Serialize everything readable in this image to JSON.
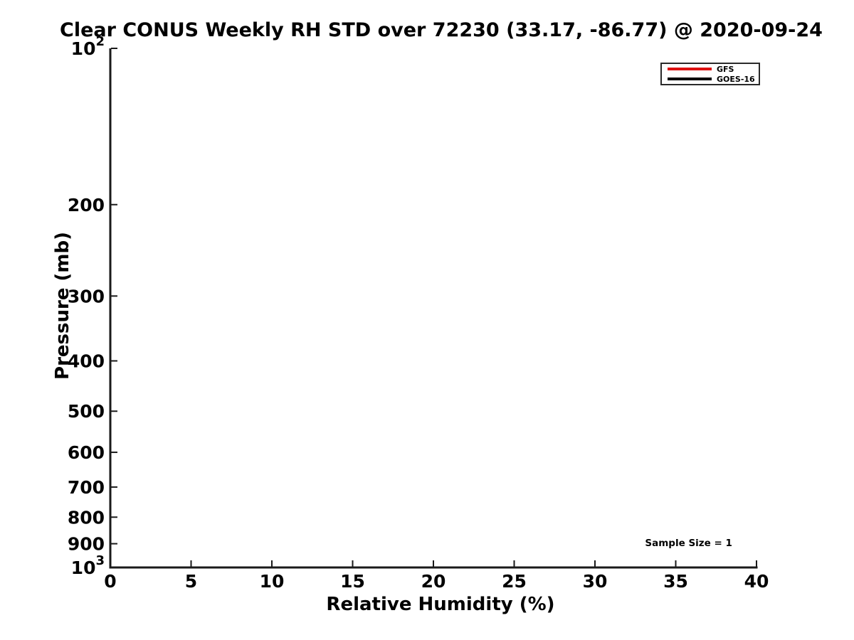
{
  "chart_data": {
    "type": "line",
    "title": "Clear CONUS Weekly RH STD over 72230 (33.17, -86.77) @ 2020-09-24",
    "xlabel": "Relative Humidity (%)",
    "ylabel": "Pressure (mb)",
    "xlim": [
      0,
      40
    ],
    "x_ticks": [
      0,
      5,
      10,
      15,
      20,
      25,
      30,
      35,
      40
    ],
    "y_scale": "log",
    "y_inverted": true,
    "ylim": [
      100,
      1000
    ],
    "y_ticks": [
      100,
      200,
      300,
      400,
      500,
      600,
      700,
      800,
      900,
      1000
    ],
    "y_tick_labels": [
      "10^2",
      "200",
      "300",
      "400",
      "500",
      "600",
      "700",
      "800",
      "900",
      "10^3"
    ],
    "grid": false,
    "legend": {
      "position": "top-right",
      "entries": [
        {
          "label": "GFS",
          "color": "#dd1111"
        },
        {
          "label": "GOES-16",
          "color": "#000000"
        }
      ]
    },
    "series": [
      {
        "name": "GFS",
        "color": "#dd1111",
        "x": [],
        "y": []
      },
      {
        "name": "GOES-16",
        "color": "#000000",
        "x": [],
        "y": []
      }
    ],
    "annotations": [
      {
        "text": "Sample Size = 1",
        "x": 35.8,
        "y_pressure": 897
      }
    ],
    "axis_color": "#1a1a1a"
  }
}
